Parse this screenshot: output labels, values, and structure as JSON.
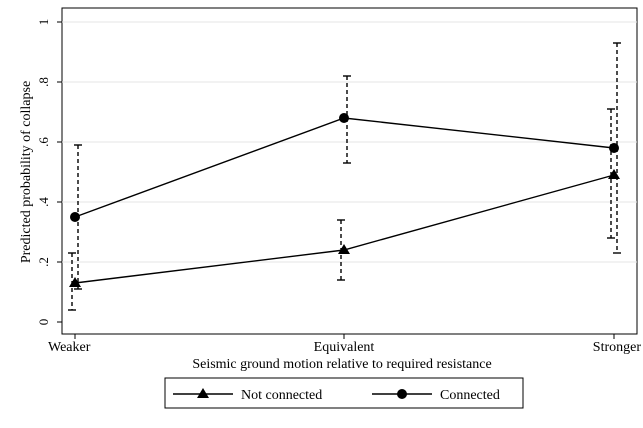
{
  "chart_data": {
    "type": "line",
    "xlabel": "Seismic ground motion relative to required resistance",
    "ylabel": "Predicted probability of collapse",
    "categories": [
      "Weaker",
      "Equivalent",
      "Stronger"
    ],
    "ylim": [
      0,
      1
    ],
    "yticks": [
      "0",
      ".2",
      ".4",
      ".6",
      ".8",
      "1"
    ],
    "grid": true,
    "legend_position": "bottom",
    "series": [
      {
        "name": "Not connected",
        "marker": "triangle",
        "values": [
          0.13,
          0.24,
          0.49
        ],
        "ci_low": [
          0.04,
          0.14,
          0.28
        ],
        "ci_high": [
          0.23,
          0.34,
          0.71
        ]
      },
      {
        "name": "Connected",
        "marker": "circle",
        "values": [
          0.35,
          0.68,
          0.58
        ],
        "ci_low": [
          0.11,
          0.53,
          0.23
        ],
        "ci_high": [
          0.59,
          0.82,
          0.93
        ]
      }
    ]
  }
}
